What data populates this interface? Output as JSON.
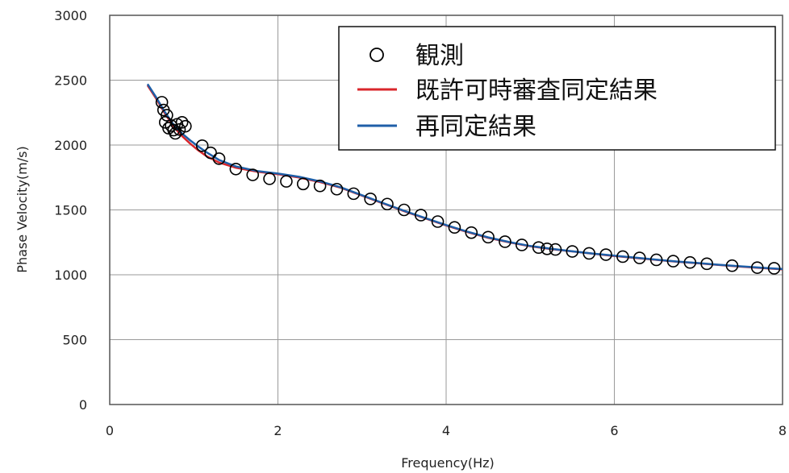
{
  "chart_data": {
    "type": "line",
    "title": "",
    "xlabel": "Frequency(Hz)",
    "ylabel": "Phase Velocity(m/s)",
    "xlim": [
      0,
      8
    ],
    "ylim": [
      0,
      3000
    ],
    "xticks": [
      0,
      2,
      4,
      6,
      8
    ],
    "yticks": [
      0,
      500,
      1000,
      1500,
      2000,
      2500,
      3000
    ],
    "grid": true,
    "legend_position": "top-right",
    "series": [
      {
        "name": "観測",
        "kind": "scatter",
        "marker": "open-circle",
        "color": "#000000",
        "points": [
          [
            0.62,
            2330
          ],
          [
            0.64,
            2270
          ],
          [
            0.66,
            2175
          ],
          [
            0.68,
            2230
          ],
          [
            0.7,
            2130
          ],
          [
            0.73,
            2150
          ],
          [
            0.76,
            2115
          ],
          [
            0.78,
            2090
          ],
          [
            0.8,
            2160
          ],
          [
            0.83,
            2120
          ],
          [
            0.86,
            2175
          ],
          [
            0.9,
            2145
          ],
          [
            1.1,
            1995
          ],
          [
            1.2,
            1940
          ],
          [
            1.3,
            1895
          ],
          [
            1.5,
            1815
          ],
          [
            1.7,
            1770
          ],
          [
            1.9,
            1740
          ],
          [
            2.1,
            1720
          ],
          [
            2.3,
            1700
          ],
          [
            2.5,
            1685
          ],
          [
            2.7,
            1660
          ],
          [
            2.9,
            1625
          ],
          [
            3.1,
            1585
          ],
          [
            3.3,
            1545
          ],
          [
            3.5,
            1500
          ],
          [
            3.7,
            1460
          ],
          [
            3.9,
            1410
          ],
          [
            4.1,
            1365
          ],
          [
            4.3,
            1325
          ],
          [
            4.5,
            1290
          ],
          [
            4.7,
            1255
          ],
          [
            4.9,
            1230
          ],
          [
            5.1,
            1210
          ],
          [
            5.2,
            1200
          ],
          [
            5.3,
            1195
          ],
          [
            5.5,
            1180
          ],
          [
            5.7,
            1165
          ],
          [
            5.9,
            1155
          ],
          [
            6.1,
            1140
          ],
          [
            6.3,
            1130
          ],
          [
            6.5,
            1115
          ],
          [
            6.7,
            1105
          ],
          [
            6.9,
            1095
          ],
          [
            7.1,
            1085
          ],
          [
            7.4,
            1070
          ],
          [
            7.7,
            1055
          ],
          [
            7.9,
            1050
          ]
        ]
      },
      {
        "name": "既許可時審査同定結果",
        "kind": "line",
        "color": "#d9262b",
        "points": [
          [
            0.45,
            2460
          ],
          [
            0.55,
            2360
          ],
          [
            0.65,
            2250
          ],
          [
            0.75,
            2150
          ],
          [
            0.85,
            2075
          ],
          [
            0.95,
            2015
          ],
          [
            1.05,
            1960
          ],
          [
            1.15,
            1915
          ],
          [
            1.3,
            1865
          ],
          [
            1.5,
            1825
          ],
          [
            1.75,
            1795
          ],
          [
            2.0,
            1775
          ],
          [
            2.25,
            1750
          ],
          [
            2.5,
            1715
          ],
          [
            2.75,
            1670
          ],
          [
            3.0,
            1610
          ],
          [
            3.25,
            1550
          ],
          [
            3.5,
            1490
          ],
          [
            3.75,
            1435
          ],
          [
            4.0,
            1380
          ],
          [
            4.25,
            1330
          ],
          [
            4.5,
            1285
          ],
          [
            4.75,
            1250
          ],
          [
            5.0,
            1220
          ],
          [
            5.25,
            1198
          ],
          [
            5.5,
            1180
          ],
          [
            5.75,
            1162
          ],
          [
            6.0,
            1145
          ],
          [
            6.25,
            1130
          ],
          [
            6.5,
            1115
          ],
          [
            6.75,
            1100
          ],
          [
            7.0,
            1088
          ],
          [
            7.25,
            1075
          ],
          [
            7.5,
            1063
          ],
          [
            7.75,
            1052
          ],
          [
            8.0,
            1042
          ]
        ]
      },
      {
        "name": "再同定結果",
        "kind": "line",
        "color": "#1f5fa8",
        "points": [
          [
            0.45,
            2470
          ],
          [
            0.55,
            2370
          ],
          [
            0.65,
            2260
          ],
          [
            0.75,
            2165
          ],
          [
            0.85,
            2095
          ],
          [
            0.95,
            2040
          ],
          [
            1.05,
            1990
          ],
          [
            1.15,
            1945
          ],
          [
            1.3,
            1885
          ],
          [
            1.5,
            1835
          ],
          [
            1.75,
            1800
          ],
          [
            2.0,
            1780
          ],
          [
            2.25,
            1755
          ],
          [
            2.5,
            1720
          ],
          [
            2.75,
            1673
          ],
          [
            3.0,
            1613
          ],
          [
            3.25,
            1553
          ],
          [
            3.5,
            1493
          ],
          [
            3.75,
            1437
          ],
          [
            4.0,
            1383
          ],
          [
            4.25,
            1333
          ],
          [
            4.5,
            1288
          ],
          [
            4.75,
            1252
          ],
          [
            5.0,
            1222
          ],
          [
            5.25,
            1200
          ],
          [
            5.5,
            1181
          ],
          [
            5.75,
            1163
          ],
          [
            6.0,
            1147
          ],
          [
            6.25,
            1132
          ],
          [
            6.5,
            1117
          ],
          [
            6.75,
            1102
          ],
          [
            7.0,
            1090
          ],
          [
            7.25,
            1077
          ],
          [
            7.5,
            1065
          ],
          [
            7.75,
            1054
          ],
          [
            8.0,
            1044
          ]
        ]
      }
    ]
  }
}
